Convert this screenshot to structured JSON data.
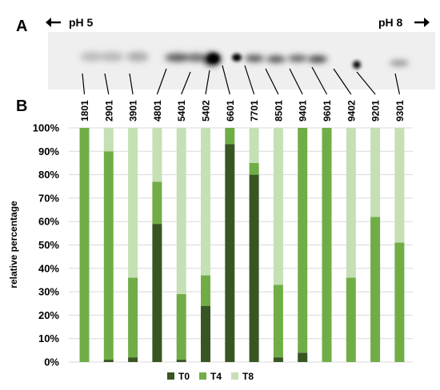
{
  "panels": {
    "a": {
      "letter": "A",
      "ph_left": "pH 5",
      "ph_right": "pH 8",
      "arrow_left_icon": "arrow-left-icon",
      "arrow_right_icon": "arrow-right-icon"
    },
    "b": {
      "letter": "B"
    }
  },
  "chart_data": {
    "type": "bar",
    "stacked": true,
    "categories": [
      "1801",
      "2901",
      "3901",
      "4801",
      "5401",
      "5402",
      "6601",
      "7701",
      "8501",
      "9401",
      "9601",
      "9402",
      "9201",
      "9301"
    ],
    "series": [
      {
        "name": "T0",
        "color": "#375623",
        "values": [
          0,
          1,
          2,
          59,
          1,
          24,
          93,
          80,
          2,
          4,
          0,
          0,
          0,
          0
        ]
      },
      {
        "name": "T4",
        "color": "#70ad47",
        "values": [
          100,
          89,
          34,
          18,
          28,
          13,
          7,
          5,
          31,
          96,
          100,
          36,
          62,
          51
        ]
      },
      {
        "name": "T8",
        "color": "#c5e0b4",
        "values": [
          0,
          10,
          64,
          23,
          71,
          63,
          0,
          15,
          67,
          0,
          0,
          64,
          38,
          49
        ]
      }
    ],
    "ylabel": "relative percentage",
    "xlabel": "",
    "ylim": [
      0,
      100
    ],
    "yticks": [
      "0%",
      "10%",
      "20%",
      "30%",
      "40%",
      "50%",
      "60%",
      "70%",
      "80%",
      "90%",
      "100%"
    ],
    "grid": true,
    "legend": "bottom"
  }
}
